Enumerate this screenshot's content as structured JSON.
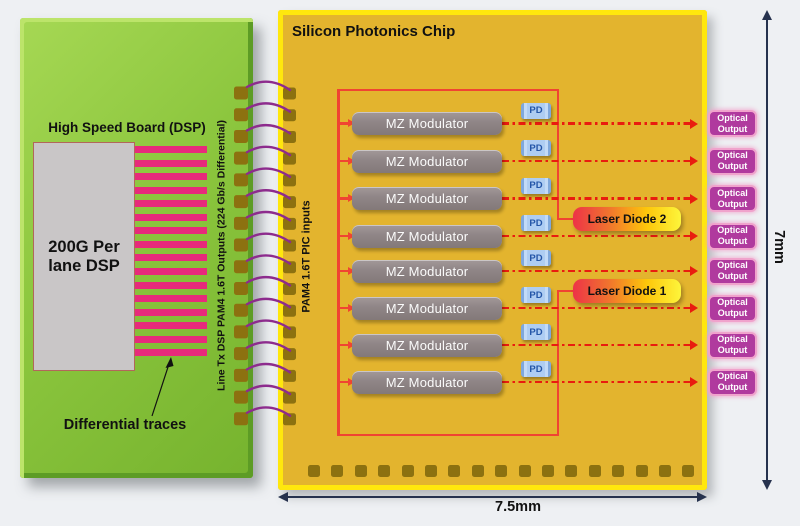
{
  "board": {
    "title": "High Speed Board (DSP)",
    "dsp_label": "200G Per lane DSP",
    "traces_annotation": "Differential traces",
    "output_label": "Line Tx DSP PAM4 1.6T Outputs (224 Gb/s Differential)",
    "trace_count": 16
  },
  "interconnect": {
    "wire_count": 16
  },
  "chip": {
    "title": "Silicon Photonics Chip",
    "input_label": "PAM4 1.6T PIC inputs",
    "mz_label": "MZ Modulator",
    "pd_label": "PD",
    "modulator_count": 8,
    "laser_diodes": [
      "Laser Diode 2",
      "Laser Diode 1"
    ],
    "bottom_pad_count": 17
  },
  "outputs": {
    "label": "Optical Output",
    "count": 8
  },
  "dimensions": {
    "width": "7.5mm",
    "height": "7mm"
  },
  "colors": {
    "board_green": "#8cc63e",
    "chip_gold": "#e3b42e",
    "chip_edge": "#ffe70d",
    "trace_pink": "#e72a7b",
    "wire_purple": "#8d2b8d",
    "pad_gold": "#8c7110",
    "signal_red": "#f04432",
    "optical_path_red": "#e91c0f",
    "pd_blue": "#aecdf2",
    "modulator_gray": "#8f8586",
    "laser_red": "#ed3347",
    "laser_yellow": "#fdf53b",
    "output_magenta": "#b03a9e",
    "dimension_navy": "#26324e"
  }
}
